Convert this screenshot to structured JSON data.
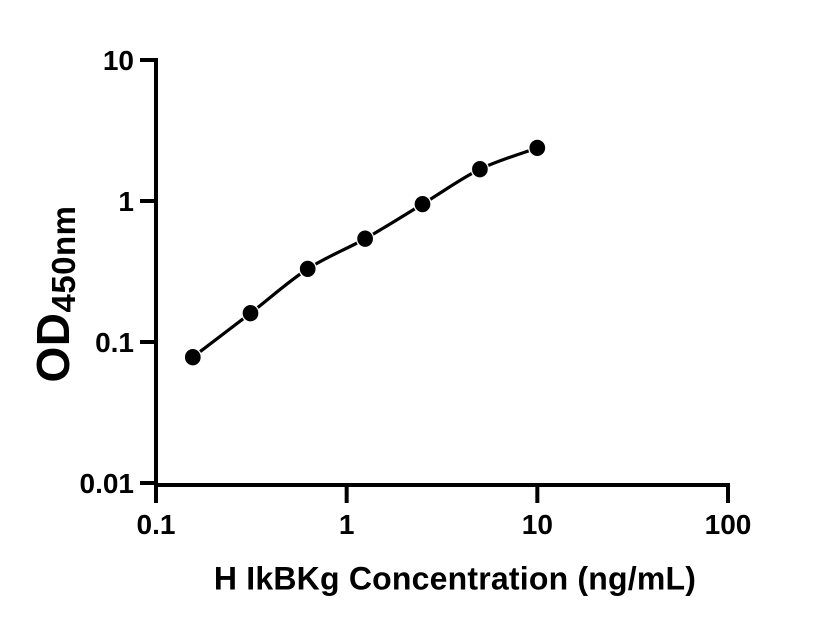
{
  "figure": {
    "background_color": "#ffffff",
    "ink_color": "#000000"
  },
  "chart_data": {
    "type": "scatter",
    "subtype": "smooth-fit-line-with-markers",
    "title": "",
    "xlabel": "H IkBKg Concentration (ng/mL)",
    "ylabel_main": "OD",
    "ylabel_sub": "450nm",
    "x_scale": "log10",
    "y_scale": "log10",
    "xlim": [
      0.1,
      100
    ],
    "ylim": [
      0.01,
      10
    ],
    "grid": false,
    "legend": false,
    "marker": "filled-circle",
    "curve": "smooth",
    "x_ticks": [
      {
        "value": 0.1,
        "label": "0.1"
      },
      {
        "value": 1,
        "label": "1"
      },
      {
        "value": 10,
        "label": "10"
      },
      {
        "value": 100,
        "label": "100"
      }
    ],
    "y_ticks": [
      {
        "value": 10,
        "label": "10"
      },
      {
        "value": 1,
        "label": "1"
      },
      {
        "value": 0.1,
        "label": "0.1"
      },
      {
        "value": 0.01,
        "label": "0.01"
      }
    ],
    "points": [
      {
        "x": 0.156,
        "y": 0.078
      },
      {
        "x": 0.313,
        "y": 0.16
      },
      {
        "x": 0.625,
        "y": 0.33
      },
      {
        "x": 1.25,
        "y": 0.54
      },
      {
        "x": 2.5,
        "y": 0.95
      },
      {
        "x": 5,
        "y": 1.68
      },
      {
        "x": 10,
        "y": 2.38
      }
    ]
  }
}
